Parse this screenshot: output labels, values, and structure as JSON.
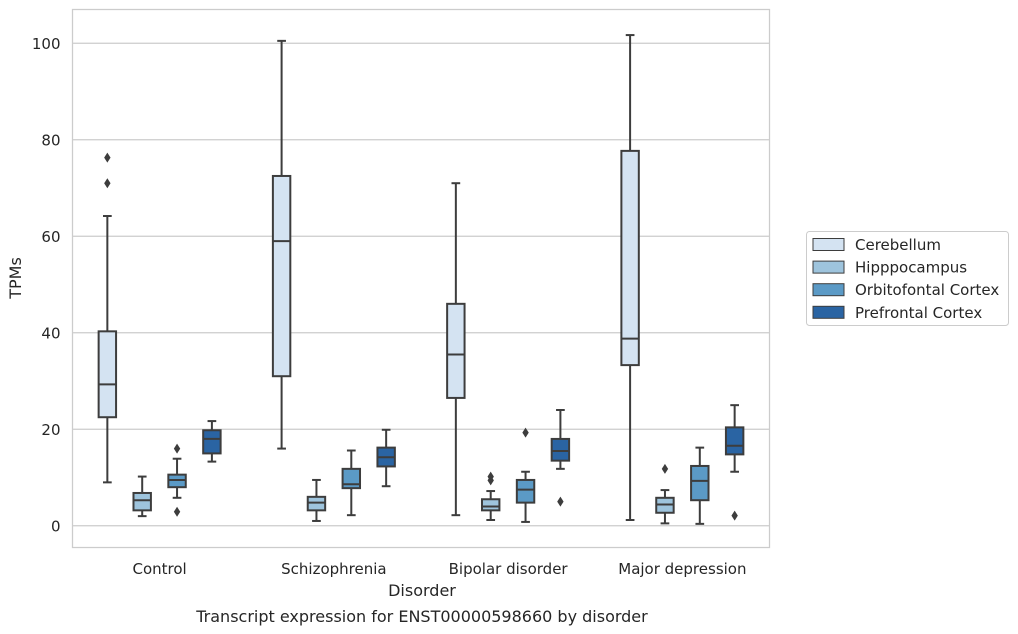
{
  "chart_data": {
    "type": "boxplot",
    "caption": "Transcript expression for ENST00000598660 by disorder",
    "xlabel": "Disorder",
    "ylabel": "TPMs",
    "ylim": [
      -4.5,
      107
    ],
    "yticks": [
      0,
      20,
      40,
      60,
      80,
      100
    ],
    "grid": "horizontal",
    "legend_position": "right",
    "categories": [
      "Control",
      "Schizophrenia",
      "Bipolar disorder",
      "Major depression"
    ],
    "series": [
      {
        "name": "Cerebellum",
        "color": "#d4e3f2",
        "boxes": [
          {
            "whisker_low": 9.0,
            "q1": 22.5,
            "median": 29.3,
            "q3": 40.3,
            "whisker_high": 64.2,
            "outliers": [
              71.0,
              76.3
            ]
          },
          {
            "whisker_low": 16.0,
            "q1": 31.0,
            "median": 59.0,
            "q3": 72.5,
            "whisker_high": 100.5,
            "outliers": []
          },
          {
            "whisker_low": 2.2,
            "q1": 26.5,
            "median": 35.5,
            "q3": 46.0,
            "whisker_high": 71.0,
            "outliers": []
          },
          {
            "whisker_low": 1.2,
            "q1": 33.3,
            "median": 38.8,
            "q3": 77.7,
            "whisker_high": 101.7,
            "outliers": []
          }
        ]
      },
      {
        "name": "Hipppocampus",
        "color": "#9ec4dd",
        "boxes": [
          {
            "whisker_low": 2.0,
            "q1": 3.2,
            "median": 5.3,
            "q3": 6.8,
            "whisker_high": 10.2,
            "outliers": []
          },
          {
            "whisker_low": 1.0,
            "q1": 3.2,
            "median": 4.8,
            "q3": 6.0,
            "whisker_high": 9.5,
            "outliers": []
          },
          {
            "whisker_low": 1.2,
            "q1": 3.2,
            "median": 4.0,
            "q3": 5.5,
            "whisker_high": 7.2,
            "outliers": [
              9.4,
              10.2
            ]
          },
          {
            "whisker_low": 0.5,
            "q1": 2.7,
            "median": 4.4,
            "q3": 5.8,
            "whisker_high": 7.4,
            "outliers": [
              11.8
            ]
          }
        ]
      },
      {
        "name": "Orbitofontal Cortex",
        "color": "#5b9ac6",
        "boxes": [
          {
            "whisker_low": 5.8,
            "q1": 8.0,
            "median": 9.5,
            "q3": 10.6,
            "whisker_high": 13.9,
            "outliers": [
              2.9,
              16.0
            ]
          },
          {
            "whisker_low": 2.2,
            "q1": 7.8,
            "median": 8.6,
            "q3": 11.8,
            "whisker_high": 15.6,
            "outliers": []
          },
          {
            "whisker_low": 0.8,
            "q1": 4.8,
            "median": 7.5,
            "q3": 9.5,
            "whisker_high": 11.2,
            "outliers": [
              19.3
            ]
          },
          {
            "whisker_low": 0.4,
            "q1": 5.3,
            "median": 9.3,
            "q3": 12.4,
            "whisker_high": 16.2,
            "outliers": []
          }
        ]
      },
      {
        "name": "Prefrontal Cortex",
        "color": "#2a64a3",
        "boxes": [
          {
            "whisker_low": 13.3,
            "q1": 15.0,
            "median": 18.0,
            "q3": 19.8,
            "whisker_high": 21.7,
            "outliers": []
          },
          {
            "whisker_low": 8.2,
            "q1": 12.3,
            "median": 14.2,
            "q3": 16.2,
            "whisker_high": 19.9,
            "outliers": []
          },
          {
            "whisker_low": 11.8,
            "q1": 13.5,
            "median": 15.5,
            "q3": 18.0,
            "whisker_high": 24.0,
            "outliers": [
              5.0
            ]
          },
          {
            "whisker_low": 11.2,
            "q1": 14.8,
            "median": 16.6,
            "q3": 20.4,
            "whisker_high": 25.0,
            "outliers": [
              2.1
            ]
          }
        ]
      }
    ]
  }
}
